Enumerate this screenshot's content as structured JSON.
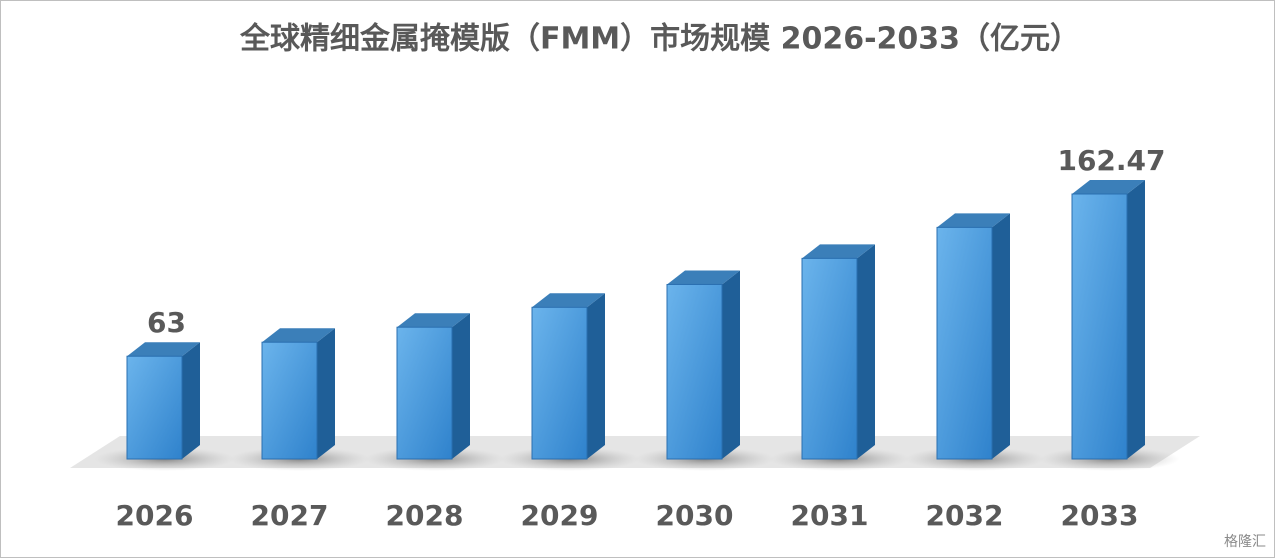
{
  "chart_data": {
    "type": "bar3d",
    "title": "全球精细金属掩模版（FMM）市场规模 2026-2033（亿元）",
    "categories": [
      "2026",
      "2027",
      "2028",
      "2029",
      "2030",
      "2031",
      "2032",
      "2033"
    ],
    "values": [
      63,
      71.6,
      80.8,
      93,
      107,
      123,
      142,
      162.47
    ],
    "value_labels": [
      "63",
      null,
      null,
      null,
      null,
      null,
      null,
      "162.47"
    ],
    "color": "#4a9ee0",
    "watermark": "格隆汇"
  }
}
